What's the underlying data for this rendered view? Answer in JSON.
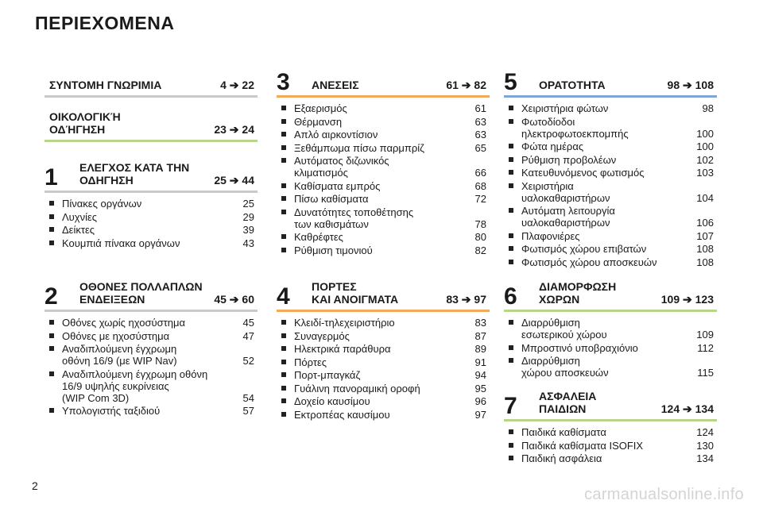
{
  "page": {
    "title": "ΠΕΡΙΕΧΟΜΕΝΑ",
    "number": "2",
    "watermark": "carmanualsonline.info"
  },
  "sections": {
    "intro": {
      "title": "ΣΥΝΤΟΜΗ ΓΝΩΡΙΜΙΑ",
      "range": "4 ➔ 22"
    },
    "eco": {
      "title": "ΟΙΚΟΛΟΓΙΚΉ\nΟΔΉΓΗΣΗ",
      "range": "23 ➔ 24"
    },
    "s1": {
      "number": "1",
      "title": "ΕΛΕΓΧΟΣ ΚΑΤΑ ΤΗΝ\nΟΔΗΓΗΣΗ",
      "range": "25 ➔ 44",
      "items": [
        {
          "label": "Πίνακες οργάνων",
          "page": "25"
        },
        {
          "label": "Λυχνίες",
          "page": "29"
        },
        {
          "label": "Δείκτες",
          "page": "39"
        },
        {
          "label": "Κουμπιά πίνακα οργάνων",
          "page": "43"
        }
      ]
    },
    "s2": {
      "number": "2",
      "title": "ΟΘΟΝΕΣ ΠΟΛΛΑΠΛΩΝ\nΕΝΔΕΙΞΕΩΝ",
      "range": "45 ➔ 60",
      "items": [
        {
          "label": "Οθόνες χωρίς ηχοσύστημα",
          "page": "45"
        },
        {
          "label": "Οθόνες με ηχοσύστημα",
          "page": "47"
        },
        {
          "label": "Αναδιπλούμενη έγχρωμη\nοθόνη 16/9 (με WIP Nav)",
          "page": "52"
        },
        {
          "label": "Αναδιπλούμενη έγχρωμη οθόνη\n16/9 υψηλής ευκρίνειας\n(WIP Com 3D)",
          "page": "54"
        },
        {
          "label": "Υπολογιστής ταξιδιού",
          "page": "57"
        }
      ]
    },
    "s3": {
      "number": "3",
      "title": "ΑΝΕΣΕΙΣ",
      "range": "61 ➔ 82",
      "items": [
        {
          "label": "Εξαερισμός",
          "page": "61"
        },
        {
          "label": "Θέρμανση",
          "page": "63"
        },
        {
          "label": "Απλό αιρκοντίσιον",
          "page": "63"
        },
        {
          "label": "Ξεθάμπωμα πίσω παρμπρίζ",
          "page": "65"
        },
        {
          "label": "Αυτόματος διζωνικός\nκλιματισμός",
          "page": "66"
        },
        {
          "label": "Καθίσματα εμπρός",
          "page": "68"
        },
        {
          "label": "Πίσω καθίσματα",
          "page": "72"
        },
        {
          "label": "Δυνατότητες τοποθέτησης\nτων καθισμάτων",
          "page": "78"
        },
        {
          "label": "Καθρέφτες",
          "page": "80"
        },
        {
          "label": "Ρύθμιση τιμονιού",
          "page": "82"
        }
      ]
    },
    "s4": {
      "number": "4",
      "title": "ΠΟΡΤΕΣ\nΚΑΙ ΑΝΟΙΓΜΑΤΑ",
      "range": "83 ➔ 97",
      "items": [
        {
          "label": "Κλειδί-τηλεχειριστήριο",
          "page": "83"
        },
        {
          "label": "Συναγερμός",
          "page": "87"
        },
        {
          "label": "Ηλεκτρικά παράθυρα",
          "page": "89"
        },
        {
          "label": "Πόρτες",
          "page": "91"
        },
        {
          "label": "Πορτ-μπαγκάζ",
          "page": "94"
        },
        {
          "label": "Γυάλινη πανοραμική οροφή",
          "page": "95"
        },
        {
          "label": "Δοχείο καυσίμου",
          "page": "96"
        },
        {
          "label": "Εκτροπέας καυσίμου",
          "page": "97"
        }
      ]
    },
    "s5": {
      "number": "5",
      "title": "ΟΡΑΤΟΤΗΤΑ",
      "range": "98 ➔ 108",
      "items": [
        {
          "label": "Χειριστήρια φώτων",
          "page": "98"
        },
        {
          "label": "Φωτοδίοδοι\nηλεκτροφωτοεκπομπής",
          "page": "100"
        },
        {
          "label": "Φώτα ημέρας",
          "page": "100"
        },
        {
          "label": "Ρύθμιση προβολέων",
          "page": "102"
        },
        {
          "label": "Κατευθυνόμενος φωτισμός",
          "page": "103"
        },
        {
          "label": "Χειριστήρια\nυαλοκαθαριστήρων",
          "page": "104"
        },
        {
          "label": "Αυτόματη λειτουργία\nυαλοκαθαριστήρων",
          "page": "106"
        },
        {
          "label": "Πλαφονιέρες",
          "page": "107"
        },
        {
          "label": "Φωτισμός χώρου επιβατών",
          "page": "108"
        },
        {
          "label": "Φωτισμός χώρου αποσκευών",
          "page": "108"
        }
      ]
    },
    "s6": {
      "number": "6",
      "title": "ΔΙΑΜΟΡΦΩΣΗ\nΧΩΡΩΝ",
      "range": "109 ➔ 123",
      "items": [
        {
          "label": "Διαρρύθμιση\nεσωτερικού χώρου",
          "page": "109"
        },
        {
          "label": "Μπροστινό υποβραχιόνιο",
          "page": "112"
        },
        {
          "label": "Διαρρύθμιση\nχώρου αποσκευών",
          "page": "115"
        }
      ]
    },
    "s7": {
      "number": "7",
      "title": "ΑΣΦΑΛΕΙΑ\nΠΑΙΔΙΩΝ",
      "range": "124 ➔ 134",
      "items": [
        {
          "label": "Παιδικά καθίσματα",
          "page": "124"
        },
        {
          "label": "Παιδικά καθίσματα ISOFIX",
          "page": "130"
        },
        {
          "label": "Παιδική ασφάλεια",
          "page": "134"
        }
      ]
    }
  },
  "colors": {
    "intro": "#c9c9c9",
    "comfort": "#f3a95b",
    "visibility": "#7ea6d8",
    "eco": "#b9d58a"
  }
}
